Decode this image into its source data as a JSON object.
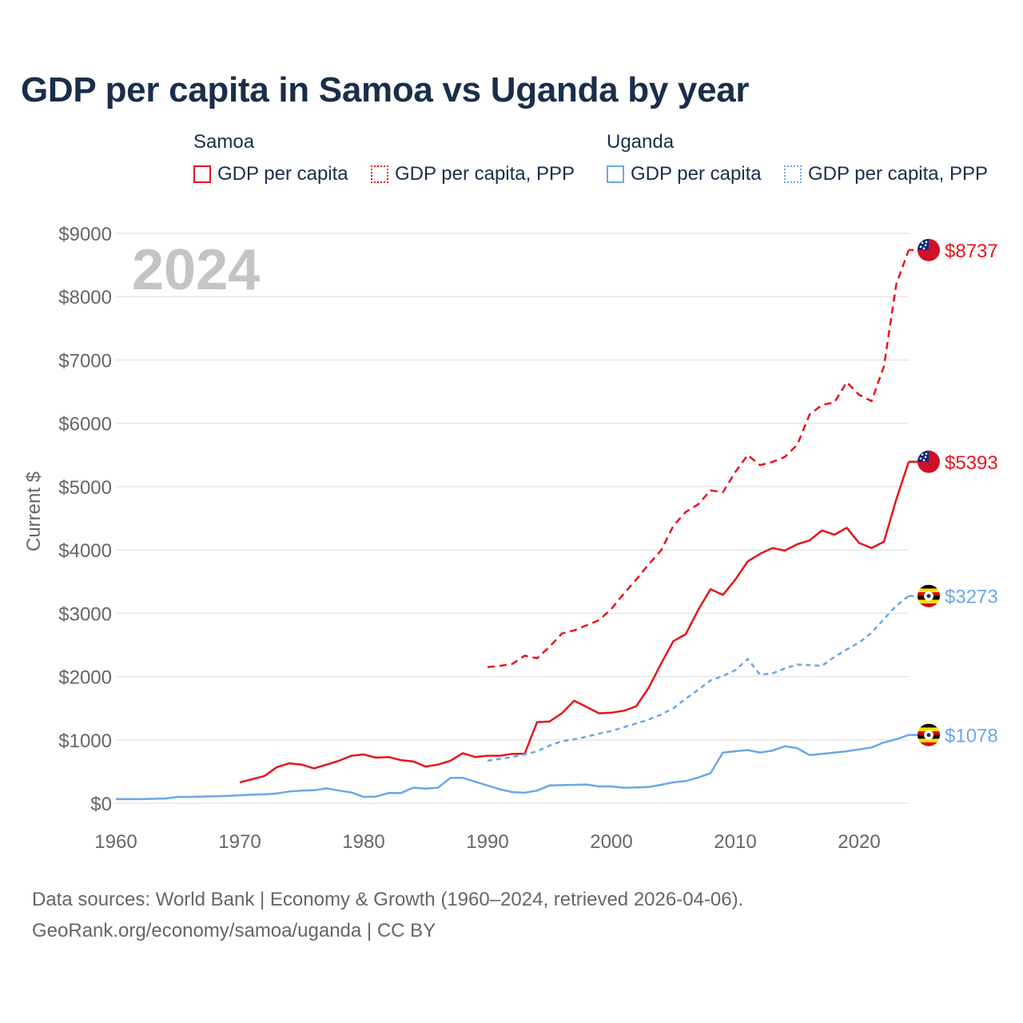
{
  "title": "GDP per capita in Samoa vs Uganda by year",
  "legend": {
    "samoa_label": "Samoa",
    "uganda_label": "Uganda",
    "samoa_gdp": "GDP per capita",
    "samoa_ppp": "GDP per capita, PPP",
    "uganda_gdp": "GDP per capita",
    "uganda_ppp": "GDP per capita, PPP"
  },
  "year_watermark": "2024",
  "footer": {
    "line1": "Data sources: World Bank | Economy & Growth (1960–2024, retrieved 2026-04-06).",
    "line2": "GeoRank.org/economy/samoa/uganda | CC BY"
  },
  "colors": {
    "samoa": "#e8141c",
    "uganda": "#6aa8e8",
    "grid": "#e6e6e6",
    "axis": "#666666",
    "watermark": "#c4c4c4"
  },
  "chart_data": {
    "type": "line",
    "title": "GDP per capita in Samoa vs Uganda by year",
    "xlabel": "",
    "ylabel": "Current $",
    "xlim": [
      1960,
      2024
    ],
    "ylim": [
      0,
      9000
    ],
    "x_ticks": [
      1960,
      1970,
      1980,
      1990,
      2000,
      2010,
      2020
    ],
    "x_tick_labels": [
      "1960",
      "1970",
      "1980",
      "1990",
      "2000",
      "2010",
      "2020"
    ],
    "y_ticks": [
      0,
      1000,
      2000,
      3000,
      4000,
      5000,
      6000,
      7000,
      8000,
      9000
    ],
    "y_tick_labels": [
      "$0",
      "$1000",
      "$2000",
      "$3000",
      "$4000",
      "$5000",
      "$6000",
      "$7000",
      "$8000",
      "$9000"
    ],
    "grid": true,
    "series": [
      {
        "name": "Samoa GDP per capita",
        "country": "Samoa",
        "style": "solid",
        "end_label": "$5393",
        "start_year": 1970,
        "values": [
          330,
          380,
          430,
          570,
          630,
          610,
          550,
          610,
          670,
          750,
          770,
          720,
          730,
          680,
          660,
          580,
          610,
          670,
          790,
          730,
          750,
          750,
          780,
          780,
          1280,
          1290,
          1420,
          1620,
          1520,
          1420,
          1430,
          1460,
          1530,
          1820,
          2200,
          2560,
          2670,
          3050,
          3380,
          3290,
          3530,
          3820,
          3940,
          4030,
          3990,
          4090,
          4150,
          4310,
          4240,
          4350,
          4110,
          4030,
          4130,
          4800,
          5393
        ]
      },
      {
        "name": "Samoa GDP per capita, PPP",
        "country": "Samoa",
        "style": "dashed",
        "end_label": "$8737",
        "start_year": 1990,
        "values": [
          2150,
          2170,
          2200,
          2330,
          2290,
          2470,
          2680,
          2730,
          2810,
          2890,
          3070,
          3310,
          3530,
          3770,
          3990,
          4380,
          4600,
          4720,
          4940,
          4910,
          5230,
          5500,
          5340,
          5390,
          5470,
          5660,
          6140,
          6290,
          6330,
          6650,
          6450,
          6350,
          6900,
          8200,
          8737
        ]
      },
      {
        "name": "Uganda GDP per capita",
        "country": "Uganda",
        "style": "solid",
        "end_label": "$1078",
        "start_year": 1960,
        "values": [
          65,
          65,
          65,
          70,
          75,
          100,
          100,
          105,
          110,
          115,
          125,
          135,
          140,
          155,
          185,
          200,
          205,
          235,
          200,
          170,
          100,
          105,
          160,
          160,
          245,
          230,
          245,
          400,
          400,
          340,
          280,
          220,
          175,
          165,
          200,
          280,
          285,
          290,
          295,
          265,
          265,
          245,
          250,
          255,
          290,
          330,
          350,
          405,
          475,
          800,
          820,
          840,
          800,
          830,
          900,
          870,
          760,
          780,
          800,
          820,
          850,
          880,
          960,
          1010,
          1078
        ]
      },
      {
        "name": "Uganda GDP per capita, PPP",
        "country": "Uganda",
        "style": "dotted",
        "end_label": "$3273",
        "start_year": 1990,
        "values": [
          670,
          700,
          730,
          770,
          820,
          910,
          980,
          1010,
          1050,
          1100,
          1140,
          1200,
          1260,
          1320,
          1400,
          1500,
          1650,
          1790,
          1940,
          2010,
          2100,
          2280,
          2030,
          2050,
          2130,
          2190,
          2180,
          2170,
          2310,
          2430,
          2540,
          2690,
          2910,
          3120,
          3273
        ]
      }
    ]
  }
}
